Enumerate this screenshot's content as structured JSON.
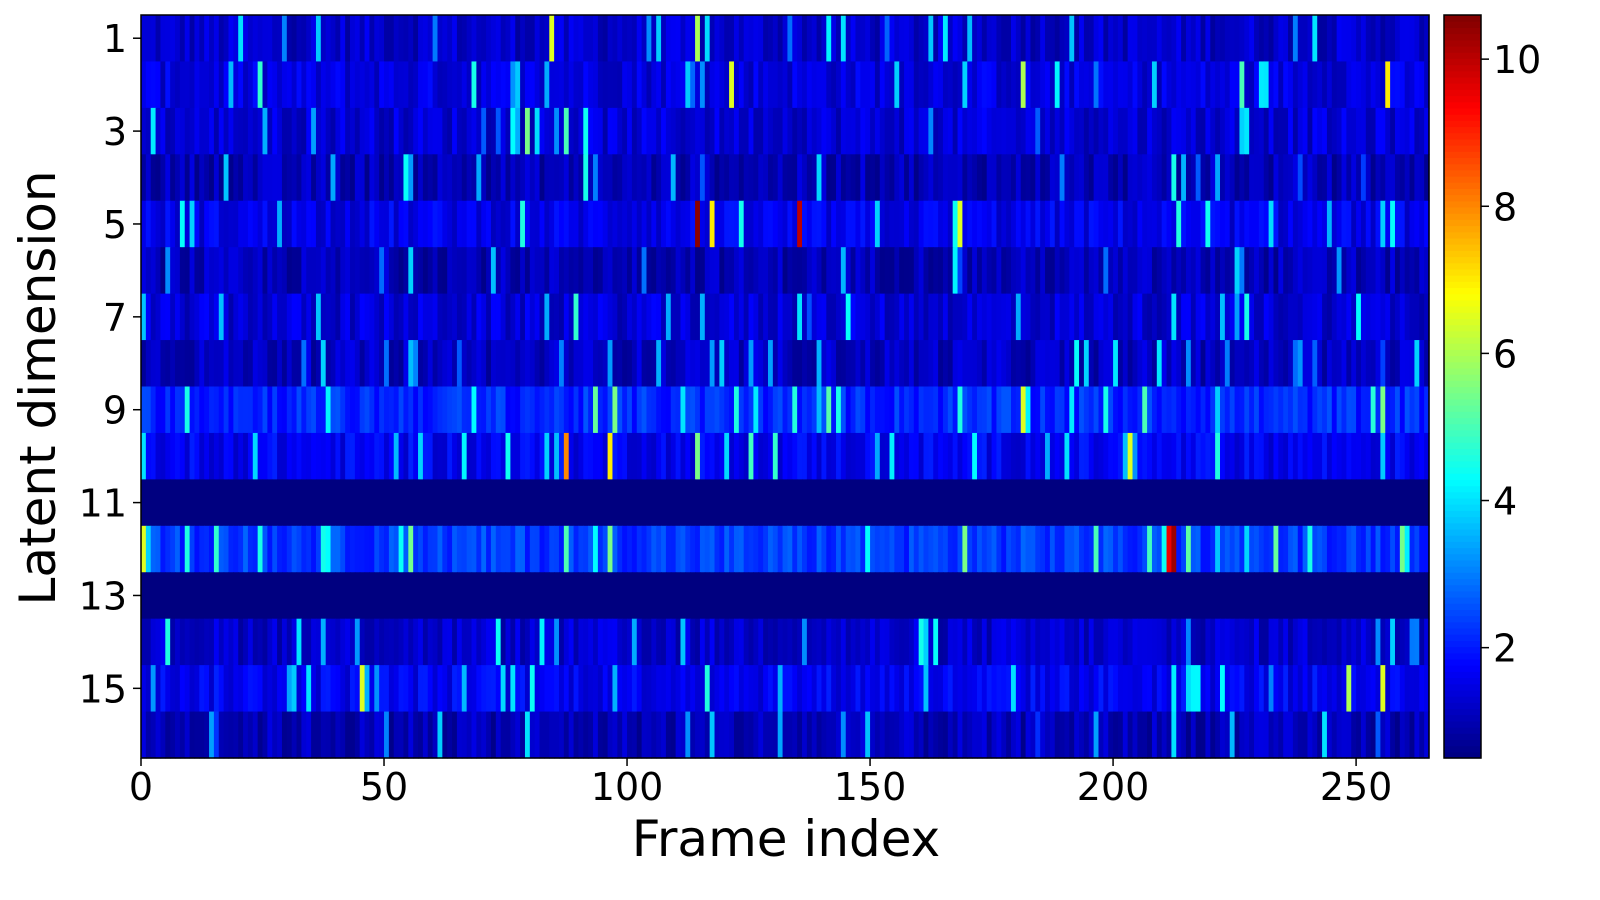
{
  "chart_data": {
    "type": "heatmap",
    "title": "",
    "xlabel": "Frame index",
    "ylabel": "Latent dimension",
    "x_ticks": [
      0,
      50,
      100,
      150,
      200,
      250
    ],
    "y_ticks": [
      1,
      3,
      5,
      7,
      9,
      11,
      13,
      15
    ],
    "xlim": [
      0,
      265
    ],
    "frames": 265,
    "rows": [
      1,
      2,
      3,
      4,
      5,
      6,
      7,
      8,
      9,
      10,
      11,
      12,
      13,
      14,
      15,
      16
    ],
    "colorbar": {
      "vmin": 0.5,
      "vmax": 10.6,
      "ticks": [
        2,
        4,
        6,
        8,
        10
      ],
      "colormap": "jet"
    },
    "row_baseline": [
      1.2,
      1.4,
      1.3,
      1.0,
      1.5,
      1.0,
      1.3,
      1.1,
      2.1,
      1.6,
      0.5,
      2.3,
      0.5,
      1.2,
      1.6,
      1.0
    ],
    "highlights": [
      {
        "row": 1,
        "frame": 20,
        "value": 4.0
      },
      {
        "row": 1,
        "frame": 84,
        "value": 6.5
      },
      {
        "row": 1,
        "frame": 114,
        "value": 6.0
      },
      {
        "row": 1,
        "frame": 144,
        "value": 4.0
      },
      {
        "row": 2,
        "frame": 68,
        "value": 4.5
      },
      {
        "row": 2,
        "frame": 121,
        "value": 6.5
      },
      {
        "row": 2,
        "frame": 181,
        "value": 6.0
      },
      {
        "row": 2,
        "frame": 226,
        "value": 5.0
      },
      {
        "row": 2,
        "frame": 256,
        "value": 7.0
      },
      {
        "row": 3,
        "frame": 79,
        "value": 5.5
      },
      {
        "row": 3,
        "frame": 87,
        "value": 5.0
      },
      {
        "row": 4,
        "frame": 91,
        "value": 4.5
      },
      {
        "row": 4,
        "frame": 212,
        "value": 4.5
      },
      {
        "row": 5,
        "frame": 114,
        "value": 10.5
      },
      {
        "row": 5,
        "frame": 117,
        "value": 7.0
      },
      {
        "row": 5,
        "frame": 135,
        "value": 10.0
      },
      {
        "row": 5,
        "frame": 168,
        "value": 6.5
      },
      {
        "row": 7,
        "frame": 135,
        "value": 4.0
      },
      {
        "row": 7,
        "frame": 227,
        "value": 4.5
      },
      {
        "row": 9,
        "frame": 97,
        "value": 5.5
      },
      {
        "row": 9,
        "frame": 181,
        "value": 6.5
      },
      {
        "row": 10,
        "frame": 87,
        "value": 8.0
      },
      {
        "row": 10,
        "frame": 96,
        "value": 7.0
      },
      {
        "row": 10,
        "frame": 114,
        "value": 5.5
      },
      {
        "row": 10,
        "frame": 203,
        "value": 6.5
      },
      {
        "row": 12,
        "frame": 0,
        "value": 6.5
      },
      {
        "row": 12,
        "frame": 96,
        "value": 5.5
      },
      {
        "row": 12,
        "frame": 169,
        "value": 5.5
      },
      {
        "row": 12,
        "frame": 196,
        "value": 5.0
      },
      {
        "row": 12,
        "frame": 211,
        "value": 9.5
      },
      {
        "row": 12,
        "frame": 212,
        "value": 10.3
      },
      {
        "row": 15,
        "frame": 45,
        "value": 6.5
      },
      {
        "row": 15,
        "frame": 248,
        "value": 6.0
      },
      {
        "row": 15,
        "frame": 255,
        "value": 6.5
      },
      {
        "row": 16,
        "frame": 79,
        "value": 4.0
      },
      {
        "row": 16,
        "frame": 212,
        "value": 4.0
      },
      {
        "row": 16,
        "frame": 243,
        "value": 4.0
      }
    ]
  }
}
